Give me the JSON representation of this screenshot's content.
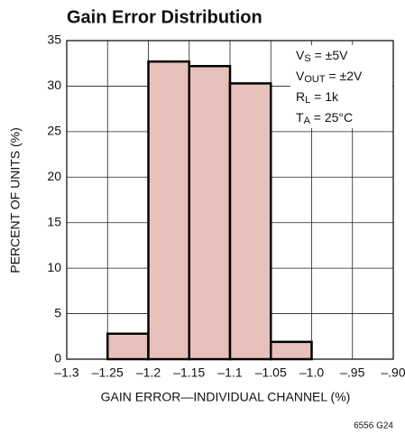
{
  "chart_data": {
    "type": "histogram",
    "title": "Gain Error Distribution",
    "xlabel": "GAIN ERROR—INDIVIDUAL CHANNEL (%)",
    "ylabel": "PERCENT OF UNITS (%)",
    "footnote": "6556 G24",
    "annotations": [
      [
        "V",
        "S",
        " = ±5V"
      ],
      [
        "V",
        "OUT",
        " = ±2V"
      ],
      [
        "R",
        "L",
        " = 1k"
      ],
      [
        "T",
        "A",
        " = 25°C"
      ]
    ],
    "bins": [
      -1.25,
      -1.2,
      -1.15,
      -1.1,
      -1.05,
      -1.0
    ],
    "values": [
      2.8,
      32.7,
      32.2,
      30.3,
      1.9
    ],
    "color": "#e6c1bc",
    "xlim": [
      -1.3,
      -0.9
    ],
    "xticks": [
      {
        "value": -1.3,
        "label": "–1.3"
      },
      {
        "value": -1.25,
        "label": "–1.25"
      },
      {
        "value": -1.2,
        "label": "–1.2"
      },
      {
        "value": -1.15,
        "label": "–1.15"
      },
      {
        "value": -1.1,
        "label": "–1.1"
      },
      {
        "value": -1.05,
        "label": "–1.05"
      },
      {
        "value": -1.0,
        "label": "–1.0"
      },
      {
        "value": -0.95,
        "label": "–.95"
      },
      {
        "value": -0.9,
        "label": "–.90"
      }
    ],
    "ylim": [
      0,
      35
    ],
    "yticks": [
      0,
      5,
      10,
      15,
      20,
      25,
      30,
      35
    ],
    "grid": true
  }
}
